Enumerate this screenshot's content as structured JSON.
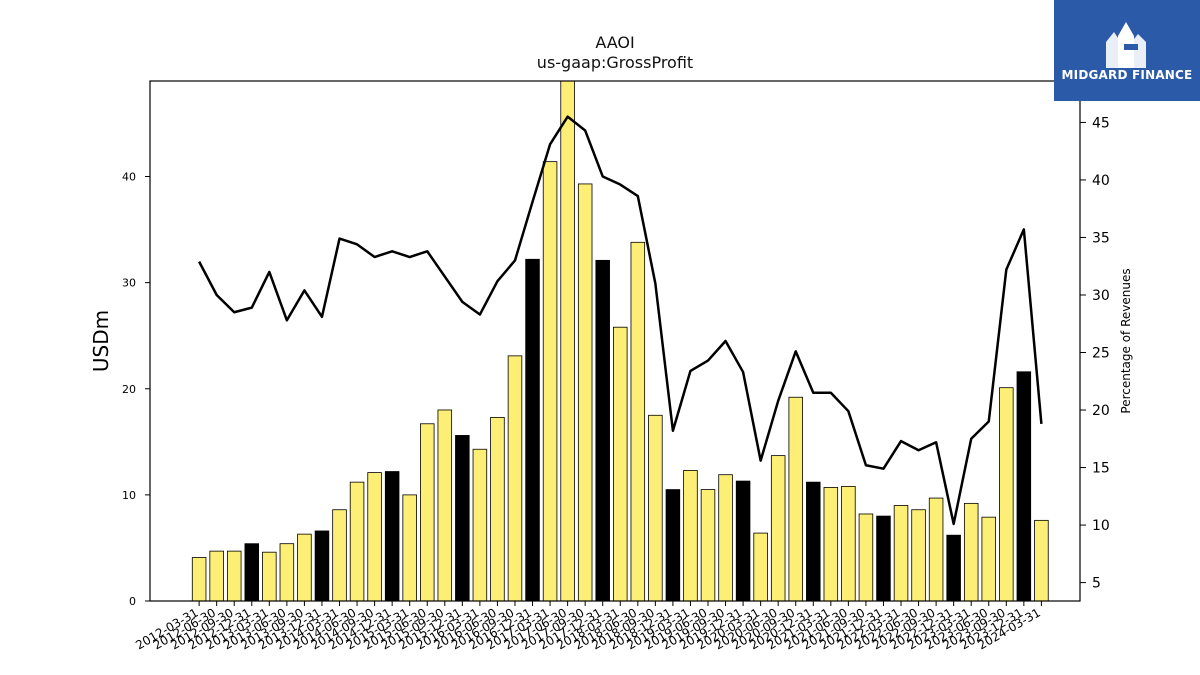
{
  "chart_title": "AAOI",
  "chart_subtitle": "us-gaap:GrossProfit",
  "brand": {
    "name": "MIDGARD FINANCE",
    "bg_color": "#2b5aa8",
    "icon": "midgard-logo-icon"
  },
  "chart_data": {
    "type": "bar",
    "categories": [
      "2012-03-31",
      "2012-06-30",
      "2012-09-30",
      "2012-12-31",
      "2013-03-31",
      "2013-06-30",
      "2013-09-30",
      "2013-12-31",
      "2014-03-31",
      "2014-06-30",
      "2014-09-30",
      "2014-12-31",
      "2015-03-31",
      "2015-06-30",
      "2015-09-30",
      "2015-12-31",
      "2016-03-31",
      "2016-06-30",
      "2016-09-30",
      "2016-12-31",
      "2017-03-31",
      "2017-06-30",
      "2017-09-30",
      "2017-12-31",
      "2018-03-31",
      "2018-06-30",
      "2018-09-30",
      "2018-12-31",
      "2019-03-31",
      "2019-06-30",
      "2019-09-30",
      "2019-12-31",
      "2020-03-31",
      "2020-06-30",
      "2020-09-30",
      "2020-12-31",
      "2021-03-31",
      "2021-06-30",
      "2021-09-30",
      "2021-12-31",
      "2022-03-31",
      "2022-06-30",
      "2022-09-30",
      "2022-12-31",
      "2023-03-31",
      "2023-06-30",
      "2023-09-30",
      "2023-12-31",
      "2024-03-31"
    ],
    "series": [
      {
        "values": [
          4.1,
          4.7,
          4.7,
          5.4,
          4.6,
          5.4,
          6.3,
          6.6,
          8.6,
          11.2,
          12.1,
          12.2,
          10.0,
          16.7,
          18.0,
          15.6,
          14.3,
          17.3,
          23.1,
          32.2,
          41.4,
          49.0,
          39.3,
          32.1,
          25.8,
          33.8,
          17.5,
          10.5,
          12.3,
          10.5,
          11.9,
          11.3,
          6.4,
          13.7,
          19.2,
          11.2,
          10.7,
          10.8,
          8.2,
          8.0,
          9.0,
          8.6,
          9.7,
          6.2,
          9.2,
          7.9,
          20.1,
          21.6,
          7.6
        ],
        "highlight": [
          false,
          false,
          false,
          true,
          false,
          false,
          false,
          true,
          false,
          false,
          false,
          true,
          false,
          false,
          false,
          true,
          false,
          false,
          false,
          true,
          false,
          false,
          false,
          true,
          false,
          false,
          false,
          true,
          false,
          false,
          false,
          true,
          false,
          false,
          false,
          true,
          false,
          false,
          false,
          true,
          false,
          false,
          false,
          true,
          false,
          false,
          false,
          true,
          false
        ]
      },
      {
        "axis": "right",
        "values": [
          32.9,
          30.0,
          28.5,
          28.9,
          32.0,
          27.8,
          30.4,
          28.1,
          34.9,
          34.4,
          33.3,
          33.8,
          33.3,
          33.8,
          31.6,
          29.4,
          28.3,
          31.2,
          33.0,
          38.1,
          43.1,
          45.5,
          44.3,
          40.3,
          39.6,
          38.6,
          31.0,
          18.2,
          23.4,
          24.3,
          26.0,
          23.3,
          15.6,
          20.8,
          25.1,
          21.5,
          21.5,
          19.9,
          15.2,
          14.9,
          17.3,
          16.5,
          17.2,
          10.1,
          17.5,
          19.0,
          32.2,
          35.7,
          18.8
        ]
      }
    ],
    "ylabel": "USDm",
    "y2label": "Percentage of Revenues",
    "ylim": [
      0,
      49
    ],
    "y2lim": [
      3.4,
      48.6
    ],
    "yticks": [
      0,
      10,
      20,
      30,
      40
    ],
    "y2ticks": [
      5,
      10,
      15,
      20,
      25,
      30,
      35,
      40,
      45
    ],
    "colors": {
      "bar": "#fdee75",
      "bar_highlight": "#000000",
      "line": "#000000"
    },
    "grid": false
  }
}
